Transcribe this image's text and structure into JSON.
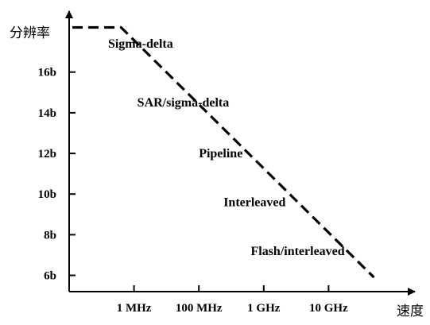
{
  "chart_data": {
    "type": "line",
    "ylabel": "分辨率",
    "xlabel": "速度",
    "y_ticks": [
      {
        "label": "6b",
        "value": 6
      },
      {
        "label": "8b",
        "value": 8
      },
      {
        "label": "10b",
        "value": 10
      },
      {
        "label": "12b",
        "value": 12
      },
      {
        "label": "14b",
        "value": 14
      },
      {
        "label": "16b",
        "value": 16
      }
    ],
    "x_ticks": [
      {
        "label": "1 MHz",
        "value": 1
      },
      {
        "label": "100 MHz",
        "value": 2
      },
      {
        "label": "1 GHz",
        "value": 3
      },
      {
        "label": "10 GHz",
        "value": 4
      }
    ],
    "ylim": [
      5.2,
      19
    ],
    "xlim": [
      0,
      5
    ],
    "boundary": {
      "style": "dashed",
      "points": [
        [
          0.05,
          18.2
        ],
        [
          0.8,
          18.2
        ],
        [
          4.7,
          5.9
        ]
      ]
    },
    "regions": [
      {
        "label": "Sigma-delta",
        "x": 0.6,
        "y": 17.2
      },
      {
        "label": "SAR/sigma-delta",
        "x": 1.05,
        "y": 14.3
      },
      {
        "label": "Pipeline",
        "x": 2.0,
        "y": 11.8
      },
      {
        "label": "Interleaved",
        "x": 2.38,
        "y": 9.4
      },
      {
        "label": "Flash/interleaved",
        "x": 2.8,
        "y": 7.0
      }
    ]
  }
}
